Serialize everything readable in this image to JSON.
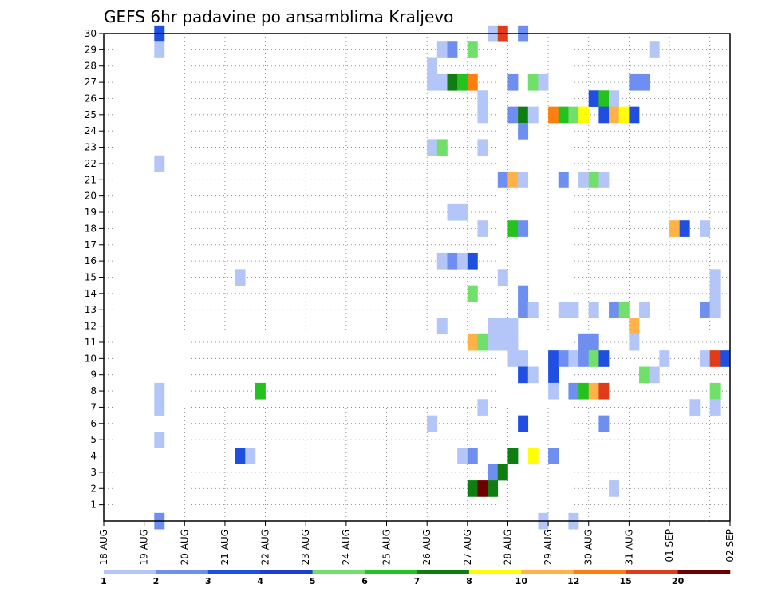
{
  "chart_data": {
    "type": "heatmap",
    "title": "GEFS 6hr padavine po ansamblima Kraljevo",
    "x_tick_labels": [
      "18 AUG",
      "19 AUG",
      "20 AUG",
      "21 AUG",
      "22 AUG",
      "23 AUG",
      "24 AUG",
      "25 AUG",
      "26 AUG",
      "27 AUG",
      "28 AUG",
      "29 AUG",
      "30 AUG",
      "31 AUG",
      "01 SEP",
      "02 SEP"
    ],
    "y_tick_labels": [
      "1",
      "2",
      "3",
      "4",
      "5",
      "6",
      "7",
      "8",
      "9",
      "10",
      "11",
      "12",
      "13",
      "14",
      "15",
      "16",
      "17",
      "18",
      "19",
      "20",
      "21",
      "22",
      "23",
      "24",
      "25",
      "26",
      "27",
      "28",
      "29",
      "30"
    ],
    "ylim": [
      0,
      30
    ],
    "grid": true,
    "x_unit": "6-hour step (4 steps per day), step 0 = 18 AUG 00Z",
    "colorbar": {
      "labels": [
        "1",
        "2",
        "3",
        "4",
        "5",
        "6",
        "7",
        "8",
        "10",
        "12",
        "15",
        "20"
      ],
      "colors": [
        "#b3c6f7",
        "#6e8ff0",
        "#1f4fe0",
        "#1d3fd1",
        "#71e06a",
        "#23c21e",
        "#0f7d0f",
        "#ffff00",
        "#ffb347",
        "#ff7f0e",
        "#e03c1a",
        "#6e0000"
      ]
    },
    "cells": [
      {
        "x": 5,
        "y": 30,
        "c": 2
      },
      {
        "x": 5,
        "y": 29,
        "c": 0
      },
      {
        "x": 5,
        "y": 22,
        "c": 0
      },
      {
        "x": 5,
        "y": 8,
        "c": 0
      },
      {
        "x": 5,
        "y": 7,
        "c": 0
      },
      {
        "x": 5,
        "y": 5,
        "c": 0
      },
      {
        "x": 5,
        "y": 0,
        "c": 1
      },
      {
        "x": 13,
        "y": 15,
        "c": 0
      },
      {
        "x": 13,
        "y": 4,
        "c": 2
      },
      {
        "x": 14,
        "y": 4,
        "c": 0
      },
      {
        "x": 15,
        "y": 8,
        "c": 5
      },
      {
        "x": 32,
        "y": 28,
        "c": 0
      },
      {
        "x": 32,
        "y": 27,
        "c": 0
      },
      {
        "x": 32,
        "y": 23,
        "c": 0
      },
      {
        "x": 32,
        "y": 6,
        "c": 0
      },
      {
        "x": 33,
        "y": 29,
        "c": 0
      },
      {
        "x": 33,
        "y": 27,
        "c": 0
      },
      {
        "x": 33,
        "y": 23,
        "c": 4
      },
      {
        "x": 33,
        "y": 16,
        "c": 0
      },
      {
        "x": 33,
        "y": 12,
        "c": 0
      },
      {
        "x": 34,
        "y": 29,
        "c": 1
      },
      {
        "x": 34,
        "y": 27,
        "c": 6
      },
      {
        "x": 34,
        "y": 19,
        "c": 0
      },
      {
        "x": 34,
        "y": 16,
        "c": 1
      },
      {
        "x": 35,
        "y": 27,
        "c": 5
      },
      {
        "x": 35,
        "y": 19,
        "c": 0
      },
      {
        "x": 35,
        "y": 16,
        "c": 0
      },
      {
        "x": 35,
        "y": 4,
        "c": 0
      },
      {
        "x": 36,
        "y": 29,
        "c": 4
      },
      {
        "x": 36,
        "y": 27,
        "c": 9
      },
      {
        "x": 36,
        "y": 16,
        "c": 2
      },
      {
        "x": 36,
        "y": 14,
        "c": 4
      },
      {
        "x": 36,
        "y": 11,
        "c": 8
      },
      {
        "x": 36,
        "y": 4,
        "c": 1
      },
      {
        "x": 36,
        "y": 2,
        "c": 6
      },
      {
        "x": 37,
        "y": 26,
        "c": 0
      },
      {
        "x": 37,
        "y": 25,
        "c": 0
      },
      {
        "x": 37,
        "y": 23,
        "c": 0
      },
      {
        "x": 37,
        "y": 18,
        "c": 0
      },
      {
        "x": 37,
        "y": 11,
        "c": 4
      },
      {
        "x": 37,
        "y": 7,
        "c": 0
      },
      {
        "x": 37,
        "y": 2,
        "c": 11
      },
      {
        "x": 38,
        "y": 30,
        "c": 0
      },
      {
        "x": 38,
        "y": 12,
        "c": 0
      },
      {
        "x": 38,
        "y": 11,
        "c": 0
      },
      {
        "x": 38,
        "y": 3,
        "c": 1
      },
      {
        "x": 38,
        "y": 2,
        "c": 6
      },
      {
        "x": 39,
        "y": 30,
        "c": 10
      },
      {
        "x": 39,
        "y": 21,
        "c": 1
      },
      {
        "x": 39,
        "y": 15,
        "c": 0
      },
      {
        "x": 39,
        "y": 12,
        "c": 0
      },
      {
        "x": 39,
        "y": 11,
        "c": 0
      },
      {
        "x": 39,
        "y": 3,
        "c": 6
      },
      {
        "x": 40,
        "y": 27,
        "c": 1
      },
      {
        "x": 40,
        "y": 25,
        "c": 1
      },
      {
        "x": 40,
        "y": 21,
        "c": 8
      },
      {
        "x": 40,
        "y": 18,
        "c": 5
      },
      {
        "x": 40,
        "y": 12,
        "c": 0
      },
      {
        "x": 40,
        "y": 11,
        "c": 0
      },
      {
        "x": 40,
        "y": 10,
        "c": 0
      },
      {
        "x": 40,
        "y": 4,
        "c": 6
      },
      {
        "x": 41,
        "y": 30,
        "c": 1
      },
      {
        "x": 41,
        "y": 25,
        "c": 6
      },
      {
        "x": 41,
        "y": 24,
        "c": 1
      },
      {
        "x": 41,
        "y": 21,
        "c": 0
      },
      {
        "x": 41,
        "y": 18,
        "c": 1
      },
      {
        "x": 41,
        "y": 14,
        "c": 1
      },
      {
        "x": 41,
        "y": 13,
        "c": 1
      },
      {
        "x": 41,
        "y": 10,
        "c": 0
      },
      {
        "x": 41,
        "y": 9,
        "c": 2
      },
      {
        "x": 41,
        "y": 6,
        "c": 2
      },
      {
        "x": 42,
        "y": 27,
        "c": 4
      },
      {
        "x": 42,
        "y": 25,
        "c": 0
      },
      {
        "x": 42,
        "y": 13,
        "c": 0
      },
      {
        "x": 42,
        "y": 9,
        "c": 0
      },
      {
        "x": 42,
        "y": 4,
        "c": 7
      },
      {
        "x": 43,
        "y": 27,
        "c": 0
      },
      {
        "x": 43,
        "y": 0,
        "c": 0
      },
      {
        "x": 44,
        "y": 25,
        "c": 9
      },
      {
        "x": 44,
        "y": 10,
        "c": 2
      },
      {
        "x": 44,
        "y": 9,
        "c": 2
      },
      {
        "x": 44,
        "y": 8,
        "c": 0
      },
      {
        "x": 44,
        "y": 4,
        "c": 1
      },
      {
        "x": 45,
        "y": 25,
        "c": 5
      },
      {
        "x": 45,
        "y": 21,
        "c": 1
      },
      {
        "x": 45,
        "y": 13,
        "c": 0
      },
      {
        "x": 45,
        "y": 10,
        "c": 1
      },
      {
        "x": 46,
        "y": 25,
        "c": 4
      },
      {
        "x": 46,
        "y": 13,
        "c": 0
      },
      {
        "x": 46,
        "y": 10,
        "c": 0
      },
      {
        "x": 46,
        "y": 8,
        "c": 1
      },
      {
        "x": 46,
        "y": 0,
        "c": 0
      },
      {
        "x": 47,
        "y": 25,
        "c": 7
      },
      {
        "x": 47,
        "y": 21,
        "c": 0
      },
      {
        "x": 47,
        "y": 11,
        "c": 1
      },
      {
        "x": 47,
        "y": 10,
        "c": 1
      },
      {
        "x": 47,
        "y": 8,
        "c": 5
      },
      {
        "x": 48,
        "y": 26,
        "c": 2
      },
      {
        "x": 48,
        "y": 21,
        "c": 4
      },
      {
        "x": 48,
        "y": 13,
        "c": 0
      },
      {
        "x": 48,
        "y": 11,
        "c": 1
      },
      {
        "x": 48,
        "y": 10,
        "c": 4
      },
      {
        "x": 48,
        "y": 8,
        "c": 8
      },
      {
        "x": 49,
        "y": 26,
        "c": 5
      },
      {
        "x": 49,
        "y": 25,
        "c": 2
      },
      {
        "x": 49,
        "y": 21,
        "c": 0
      },
      {
        "x": 49,
        "y": 10,
        "c": 2
      },
      {
        "x": 49,
        "y": 8,
        "c": 10
      },
      {
        "x": 49,
        "y": 6,
        "c": 1
      },
      {
        "x": 50,
        "y": 26,
        "c": 0
      },
      {
        "x": 50,
        "y": 25,
        "c": 8
      },
      {
        "x": 50,
        "y": 13,
        "c": 1
      },
      {
        "x": 50,
        "y": 2,
        "c": 0
      },
      {
        "x": 51,
        "y": 25,
        "c": 7
      },
      {
        "x": 51,
        "y": 13,
        "c": 4
      },
      {
        "x": 52,
        "y": 27,
        "c": 1
      },
      {
        "x": 52,
        "y": 25,
        "c": 2
      },
      {
        "x": 52,
        "y": 12,
        "c": 8
      },
      {
        "x": 52,
        "y": 11,
        "c": 0
      },
      {
        "x": 53,
        "y": 27,
        "c": 1
      },
      {
        "x": 53,
        "y": 13,
        "c": 0
      },
      {
        "x": 53,
        "y": 9,
        "c": 4
      },
      {
        "x": 54,
        "y": 29,
        "c": 0
      },
      {
        "x": 54,
        "y": 9,
        "c": 0
      },
      {
        "x": 55,
        "y": 10,
        "c": 0
      },
      {
        "x": 56,
        "y": 18,
        "c": 8
      },
      {
        "x": 57,
        "y": 18,
        "c": 2
      },
      {
        "x": 58,
        "y": 7,
        "c": 0
      },
      {
        "x": 59,
        "y": 18,
        "c": 0
      },
      {
        "x": 59,
        "y": 13,
        "c": 1
      },
      {
        "x": 59,
        "y": 10,
        "c": 0
      },
      {
        "x": 60,
        "y": 15,
        "c": 0
      },
      {
        "x": 60,
        "y": 14,
        "c": 0
      },
      {
        "x": 60,
        "y": 13,
        "c": 0
      },
      {
        "x": 60,
        "y": 10,
        "c": 10
      },
      {
        "x": 60,
        "y": 8,
        "c": 4
      },
      {
        "x": 60,
        "y": 7,
        "c": 0
      },
      {
        "x": 61,
        "y": 10,
        "c": 2
      }
    ]
  }
}
